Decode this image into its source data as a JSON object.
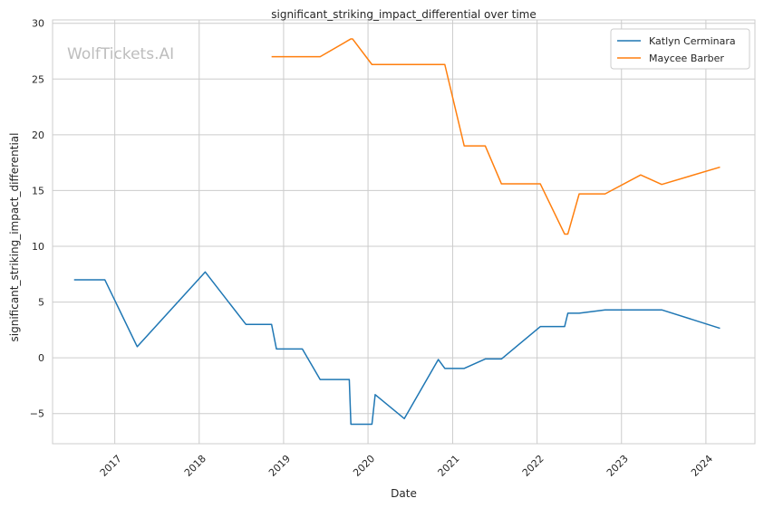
{
  "chart_data": {
    "type": "line",
    "title": "significant_striking_impact_differential over time",
    "xlabel": "Date",
    "ylabel": "significant_striking_impact_differential",
    "watermark": "WolfTickets.AI",
    "x_ticks": [
      "2017",
      "2018",
      "2019",
      "2020",
      "2021",
      "2022",
      "2023",
      "2024"
    ],
    "y_ticks": [
      -5,
      0,
      5,
      10,
      15,
      20,
      25,
      30
    ],
    "xlim": [
      "2016-04-07",
      "2024-07-31"
    ],
    "ylim": [
      -7.7,
      30.3
    ],
    "grid": true,
    "legend_position": "top-right",
    "series": [
      {
        "name": "Katlyn Cerminara",
        "color": "#1f77b4",
        "points": [
          [
            "2016-07-09",
            7.0
          ],
          [
            "2016-11-19",
            7.0
          ],
          [
            "2017-04-08",
            1.0
          ],
          [
            "2018-01-27",
            7.7
          ],
          [
            "2018-07-22",
            3.0
          ],
          [
            "2018-11-10",
            3.0
          ],
          [
            "2018-12-01",
            0.8
          ],
          [
            "2019-03-23",
            0.8
          ],
          [
            "2019-06-08",
            -1.95
          ],
          [
            "2019-10-12",
            -1.95
          ],
          [
            "2019-10-19",
            -5.95
          ],
          [
            "2020-01-18",
            -5.95
          ],
          [
            "2020-02-01",
            -3.3
          ],
          [
            "2020-06-06",
            -5.45
          ],
          [
            "2020-10-31",
            -0.15
          ],
          [
            "2020-11-28",
            -0.95
          ],
          [
            "2021-02-20",
            -0.95
          ],
          [
            "2021-05-22",
            -0.1
          ],
          [
            "2021-07-31",
            -0.1
          ],
          [
            "2022-01-15",
            2.8
          ],
          [
            "2022-04-30",
            2.8
          ],
          [
            "2022-05-14",
            4.0
          ],
          [
            "2022-07-02",
            4.0
          ],
          [
            "2022-10-22",
            4.3
          ],
          [
            "2023-06-24",
            4.3
          ],
          [
            "2024-03-02",
            2.65
          ]
        ]
      },
      {
        "name": "Maycee Barber",
        "color": "#ff7f0e",
        "points": [
          [
            "2018-11-10",
            27.0
          ],
          [
            "2019-06-08",
            27.0
          ],
          [
            "2019-10-19",
            28.6
          ],
          [
            "2019-10-26",
            28.6
          ],
          [
            "2020-01-18",
            26.3
          ],
          [
            "2020-11-28",
            26.3
          ],
          [
            "2021-02-20",
            19.0
          ],
          [
            "2021-05-22",
            19.0
          ],
          [
            "2021-07-31",
            15.6
          ],
          [
            "2022-01-15",
            15.6
          ],
          [
            "2022-04-30",
            11.1
          ],
          [
            "2022-05-14",
            11.1
          ],
          [
            "2022-07-02",
            14.7
          ],
          [
            "2022-10-22",
            14.7
          ],
          [
            "2023-03-25",
            16.4
          ],
          [
            "2023-06-24",
            15.55
          ],
          [
            "2024-03-02",
            17.1
          ]
        ]
      }
    ]
  }
}
